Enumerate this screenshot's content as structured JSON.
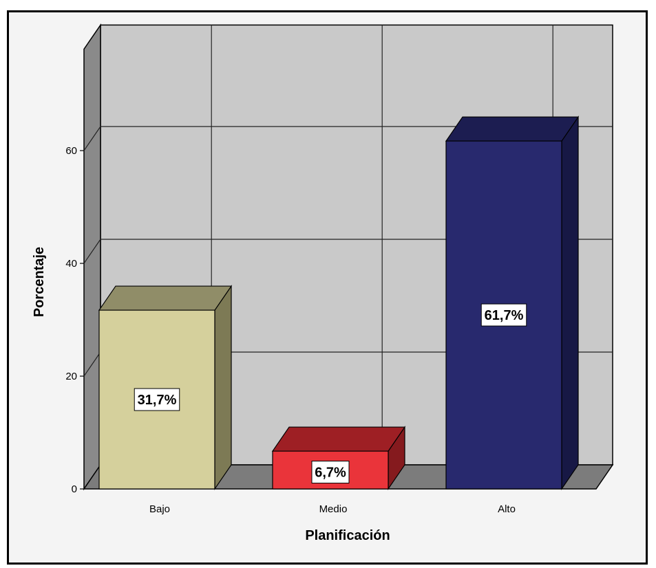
{
  "chart_data": {
    "type": "bar",
    "categories": [
      "Bajo",
      "Medio",
      "Alto"
    ],
    "values": [
      31.7,
      6.7,
      61.7
    ],
    "data_labels": [
      "31,7%",
      "6,7%",
      "61,7%"
    ],
    "xlabel": "Planificación",
    "ylabel": "Porcentaje",
    "ylim": [
      0,
      78
    ],
    "yticks": [
      0,
      20,
      40,
      60
    ],
    "grid": true,
    "three_d": true,
    "colors": {
      "bars": [
        {
          "front": "#d5d09c",
          "top": "#908d68",
          "side": "#7d7a55"
        },
        {
          "front": "#ea343a",
          "top": "#9e1f24",
          "side": "#851a1e"
        },
        {
          "front": "#28296e",
          "top": "#1c1d51",
          "side": "#171845"
        }
      ],
      "back_wall": "#c9c9c9",
      "side_wall": "#8a8a8a",
      "floor": "#7c7c7c"
    }
  }
}
